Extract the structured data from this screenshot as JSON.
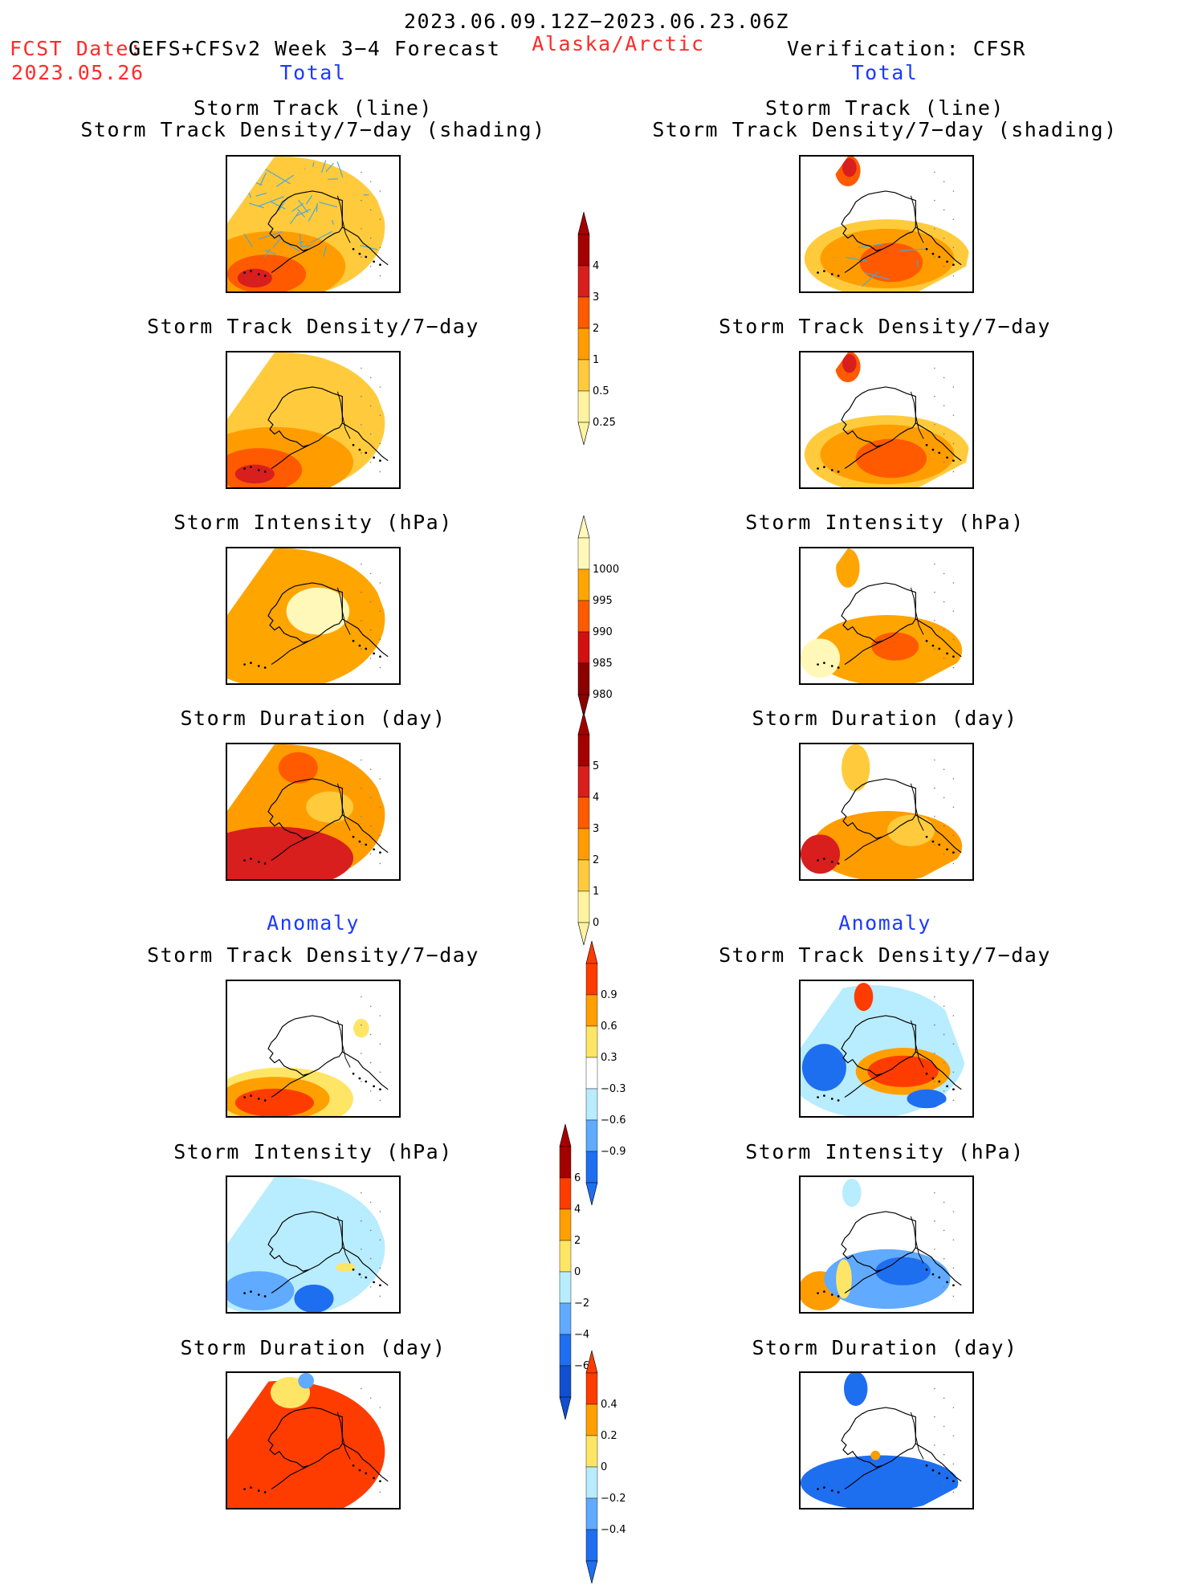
{
  "header": {
    "period": "2023.06.09.12Z−2023.06.23.06Z",
    "fcst_label": "FCST Date:",
    "model": "GEFS+CFSv2 Week 3−4 Forecast",
    "fcst_date": "2023.05.26",
    "region": "Alaska/Arctic",
    "verification": "Verification: CFSR",
    "total_left": "Total",
    "total_right": "Total",
    "anomaly_left": "Anomaly",
    "anomaly_right": "Anomaly"
  },
  "panels": {
    "row1_title_a": "Storm Track (line)",
    "row1_title_b": "Storm Track Density/7−day (shading)",
    "row2_title": "Storm Track Density/7−day",
    "row3_title": "Storm Intensity (hPa)",
    "row4_title": "Storm Duration (day)",
    "row5_title": "Storm Track Density/7−day",
    "row6_title": "Storm Intensity (hPa)",
    "row7_title": "Storm Duration (day)"
  },
  "colorbars": {
    "density": {
      "labels": [
        "4",
        "3",
        "2",
        "1",
        "0.5",
        "0.25"
      ],
      "colors": [
        "#a50000",
        "#d91e1e",
        "#ff5a00",
        "#ff9d00",
        "#ffcb3c",
        "#fff3a0"
      ]
    },
    "intensity": {
      "labels": [
        "1000",
        "995",
        "990",
        "985",
        "980"
      ],
      "colors": [
        "#fff8b8",
        "#ffa500",
        "#ff5a00",
        "#d21010",
        "#8b0000"
      ]
    },
    "duration": {
      "labels": [
        "5",
        "4",
        "3",
        "2",
        "1",
        "0"
      ],
      "colors": [
        "#a50000",
        "#d91e1e",
        "#ff5a00",
        "#ff9d00",
        "#ffcb3c",
        "#fff3a0"
      ]
    },
    "density_anom": {
      "labels": [
        "0.9",
        "0.6",
        "0.3",
        "−0.3",
        "−0.6",
        "−0.9"
      ],
      "colors": [
        "#ff3c00",
        "#ffa000",
        "#ffe566",
        "#ffffff",
        "#b8ecff",
        "#60aaff",
        "#1e6ef0"
      ]
    },
    "intensity_anom": {
      "labels": [
        "6",
        "4",
        "2",
        "0",
        "−2",
        "−4",
        "−6"
      ],
      "colors": [
        "#a50000",
        "#ff3c00",
        "#ffa000",
        "#ffe566",
        "#b8ecff",
        "#60aaff",
        "#1e6ef0",
        "#1050d0"
      ]
    },
    "duration_anom": {
      "labels": [
        "0.4",
        "0.2",
        "0",
        "−0.2",
        "−0.4"
      ],
      "colors": [
        "#ff3c00",
        "#ffa000",
        "#ffe566",
        "#b8ecff",
        "#60aaff",
        "#1e6ef0"
      ]
    }
  },
  "colors": {
    "track_line": "#4aa8d8",
    "title_red": "#ff2a2a",
    "title_blue": "#1c39ff"
  }
}
